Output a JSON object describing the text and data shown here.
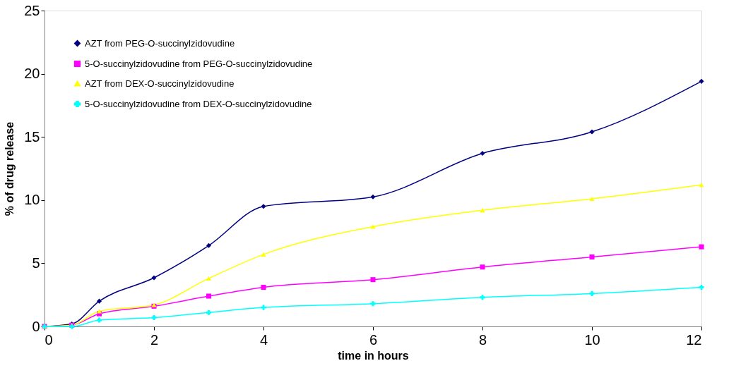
{
  "chart_data": {
    "type": "line",
    "xlabel": "time in hours",
    "ylabel": "% of drug release",
    "x": [
      0,
      0.5,
      1,
      2,
      3,
      4,
      6,
      8,
      10,
      12
    ],
    "xlim": [
      0,
      12
    ],
    "xticks": [
      0,
      2,
      4,
      6,
      8,
      10,
      12
    ],
    "ylim": [
      0,
      25
    ],
    "yticks": [
      0,
      5,
      10,
      15,
      20,
      25
    ],
    "grid": false,
    "legend": "top left",
    "line_style": "solid",
    "series": [
      {
        "name": "AZT from PEG-O-succinylzidovudine",
        "color": "#000080",
        "marker": "diamond",
        "values": [
          0,
          0.2,
          2.0,
          3.85,
          6.4,
          9.5,
          10.25,
          13.7,
          15.4,
          19.4
        ]
      },
      {
        "name": "5-O-succinylzidovudine from PEG-O-succinylzidovudine",
        "color": "#ff00ff",
        "marker": "square",
        "values": [
          0,
          0.1,
          1.0,
          1.6,
          2.4,
          3.1,
          3.7,
          4.7,
          5.5,
          6.3
        ]
      },
      {
        "name": "AZT from DEX-O-succinylzidovudine",
        "color": "#ffff00",
        "marker": "triangle",
        "values": [
          0,
          0.1,
          1.2,
          1.7,
          3.8,
          5.7,
          7.9,
          9.2,
          10.1,
          11.2
        ]
      },
      {
        "name": "5-O-succinylzidovudine from DEX-O-succinylzidovudine",
        "color": "#00ffff",
        "marker": "cross",
        "values": [
          0,
          0,
          0.5,
          0.7,
          1.1,
          1.5,
          1.8,
          2.3,
          2.6,
          3.1
        ]
      }
    ]
  }
}
